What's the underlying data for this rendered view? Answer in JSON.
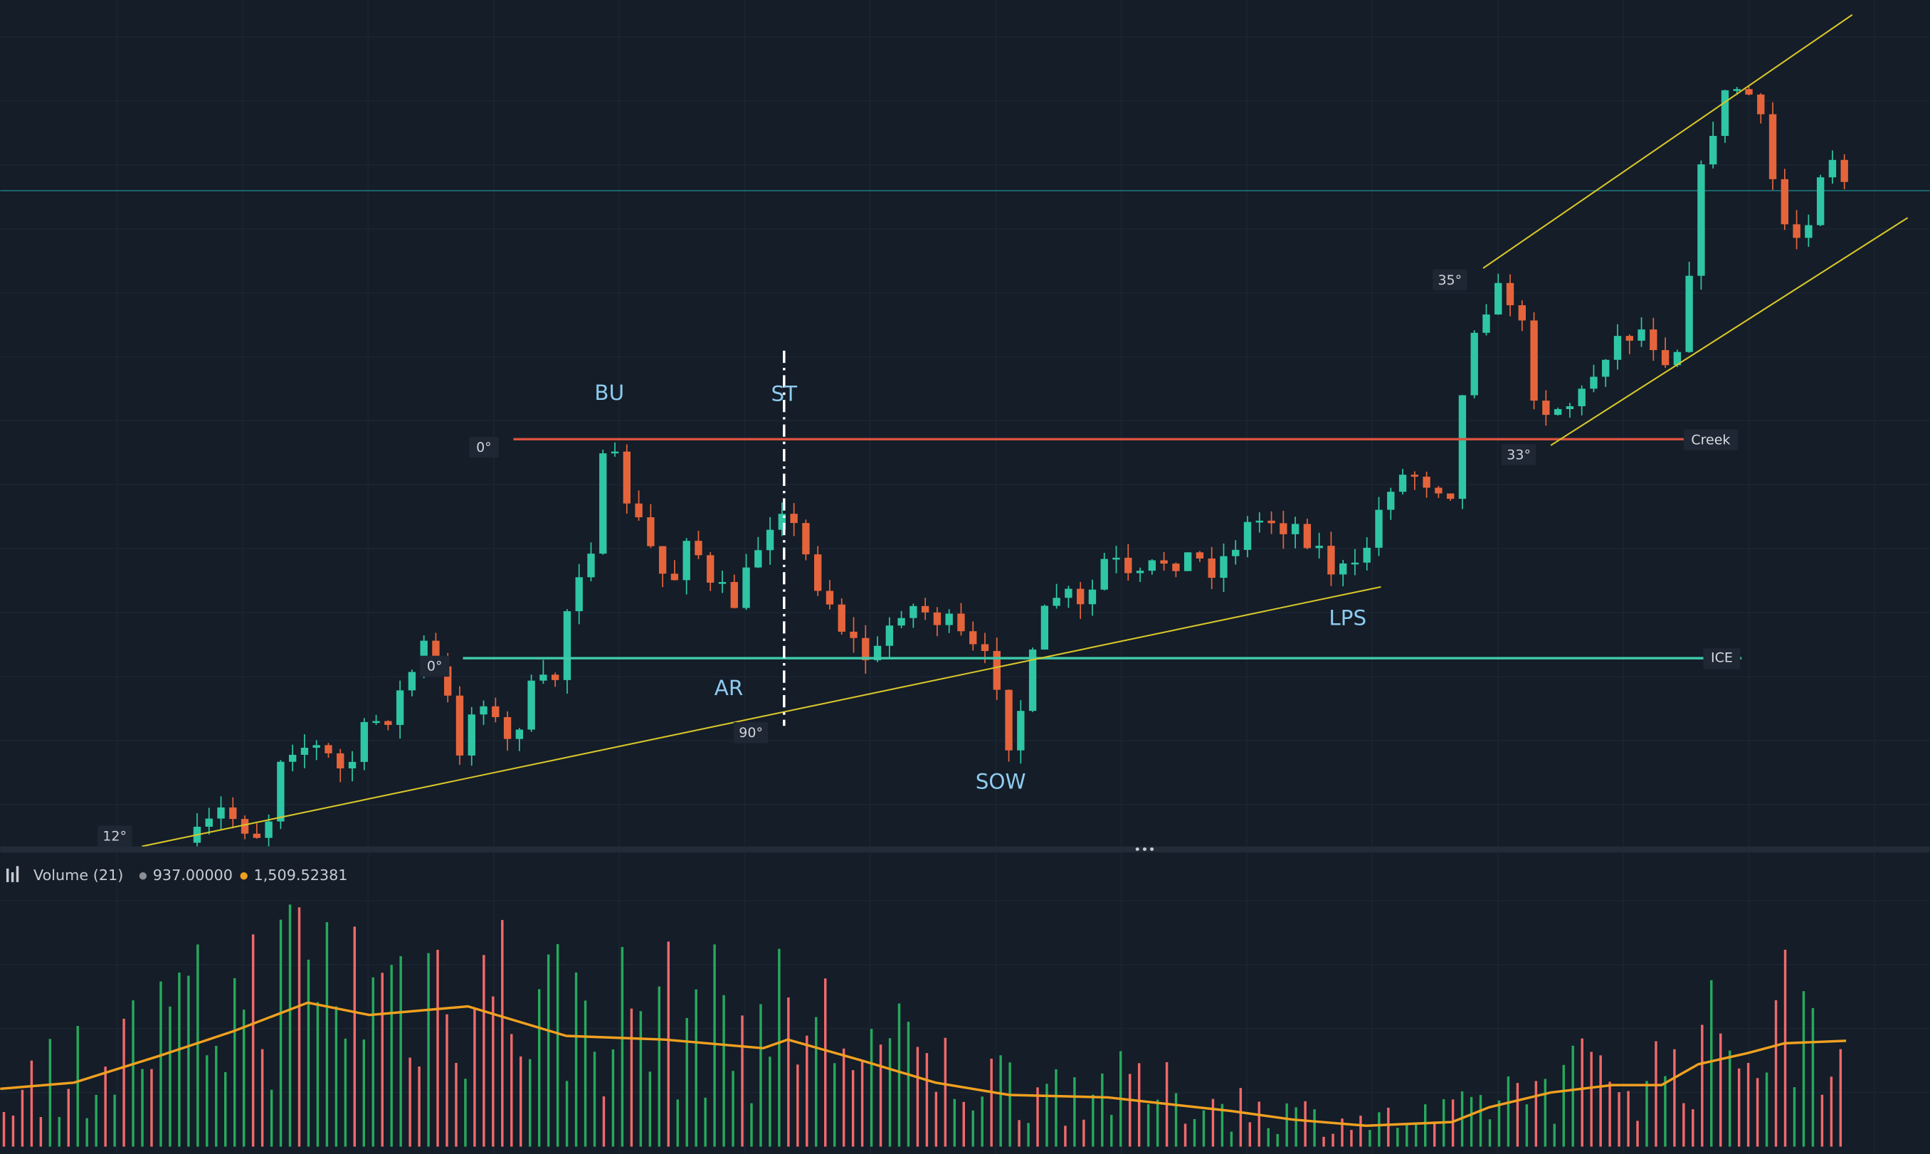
{
  "chart_labels": {
    "bu": "BU",
    "st": "ST",
    "ar": "AR",
    "sow": "SOW",
    "lps": "LPS"
  },
  "levels": {
    "creek": "Creek",
    "ice": "ICE"
  },
  "angles": [
    "0°",
    "0°",
    "90°",
    "12°",
    "35°",
    "33°"
  ],
  "volume_legend": {
    "title": "Volume (21)",
    "volume": "937.00000",
    "average": "1,509.52381"
  }
}
